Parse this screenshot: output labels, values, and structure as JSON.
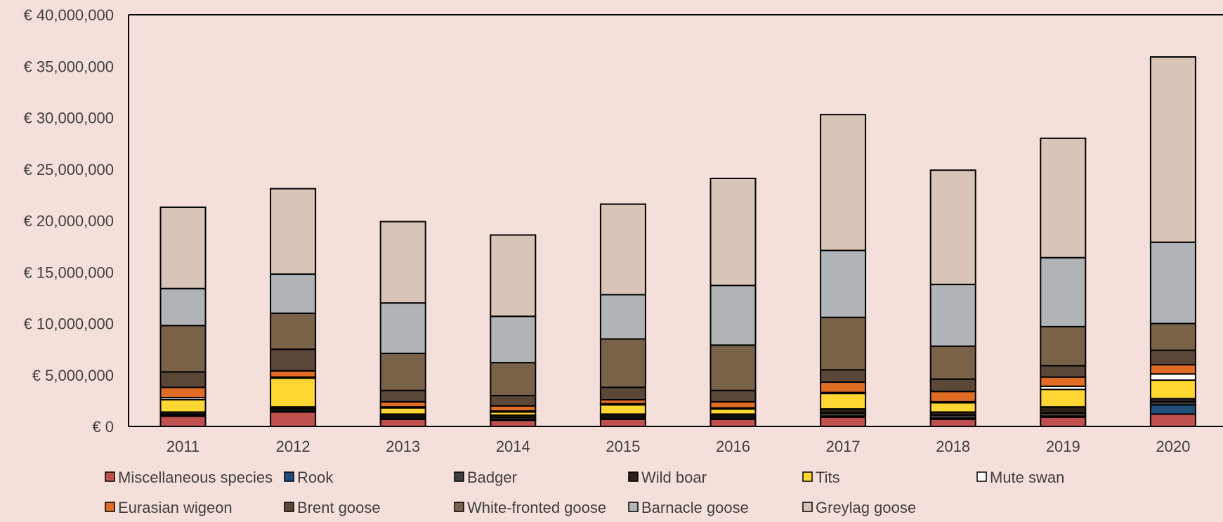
{
  "chart_data": {
    "type": "bar",
    "stacked": true,
    "categories": [
      "2011",
      "2012",
      "2013",
      "2014",
      "2015",
      "2016",
      "2017",
      "2018",
      "2019",
      "2020"
    ],
    "ylim": [
      0,
      40000000
    ],
    "y_ticks": [
      "€ 0",
      "€ 5,000,000",
      "€ 10,000,000",
      "€ 15,000,000",
      "€ 20,000,000",
      "€ 25,000,000",
      "€ 30,000,000",
      "€ 35,000,000",
      "€ 40,000,000"
    ],
    "y_tick_values": [
      0,
      5000000,
      10000000,
      15000000,
      20000000,
      25000000,
      30000000,
      35000000,
      40000000
    ],
    "grid": false,
    "legend_position": "bottom",
    "series": [
      {
        "name": "Miscellaneous species",
        "color": "#c0504d",
        "values": [
          1000000,
          1400000,
          700000,
          600000,
          700000,
          700000,
          900000,
          700000,
          900000,
          1200000
        ]
      },
      {
        "name": "Rook",
        "color": "#1f4e79",
        "values": [
          100000,
          100000,
          100000,
          100000,
          100000,
          100000,
          100000,
          100000,
          100000,
          900000
        ]
      },
      {
        "name": "Badger",
        "color": "#404040",
        "values": [
          100000,
          200000,
          200000,
          200000,
          200000,
          200000,
          300000,
          300000,
          300000,
          300000
        ]
      },
      {
        "name": "Wild boar",
        "color": "#2e2017",
        "values": [
          200000,
          200000,
          200000,
          200000,
          200000,
          200000,
          400000,
          300000,
          600000,
          300000
        ]
      },
      {
        "name": "Tits",
        "color": "#ffd632",
        "values": [
          1200000,
          2800000,
          600000,
          300000,
          900000,
          500000,
          1500000,
          900000,
          1700000,
          1800000
        ]
      },
      {
        "name": "Mute swan",
        "color": "#ffffff",
        "values": [
          200000,
          100000,
          100000,
          100000,
          100000,
          100000,
          100000,
          100000,
          300000,
          600000
        ]
      },
      {
        "name": "Eurasian wigeon",
        "color": "#e06c26",
        "values": [
          1000000,
          600000,
          500000,
          500000,
          400000,
          600000,
          1000000,
          1000000,
          900000,
          900000
        ]
      },
      {
        "name": "Brent goose",
        "color": "#5b4738",
        "values": [
          1500000,
          2100000,
          1100000,
          1000000,
          1200000,
          1100000,
          1200000,
          1200000,
          1100000,
          1400000
        ]
      },
      {
        "name": "White-fronted goose",
        "color": "#7a6249",
        "values": [
          4500000,
          3500000,
          3600000,
          3200000,
          4700000,
          4400000,
          5100000,
          3200000,
          3800000,
          2600000
        ]
      },
      {
        "name": "Barnacle goose",
        "color": "#b0b4b6",
        "values": [
          3600000,
          3800000,
          4900000,
          4500000,
          4300000,
          5800000,
          6500000,
          6000000,
          6700000,
          7900000
        ]
      },
      {
        "name": "Greylag goose",
        "color": "#d8c5b8",
        "values": [
          7900000,
          8300000,
          7900000,
          7900000,
          8800000,
          10400000,
          13200000,
          11100000,
          11600000,
          18000000
        ]
      }
    ]
  }
}
